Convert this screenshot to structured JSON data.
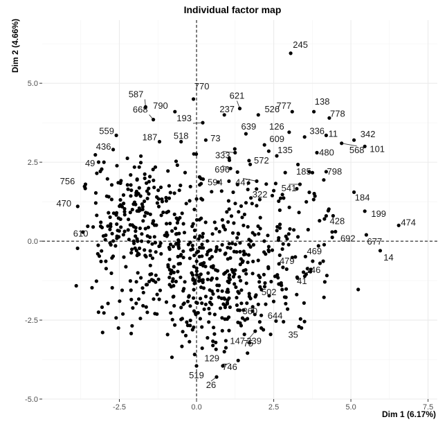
{
  "chart_data": {
    "type": "scatter",
    "title": "Individual factor map",
    "xlabel": "Dim 1 (6.17%)",
    "ylabel": "Dim 2 (4.66%)",
    "xlim": [
      -5.0,
      7.8
    ],
    "ylim": [
      -5.0,
      7.0
    ],
    "x_ticks": [
      -2.5,
      0.0,
      2.5,
      5.0,
      7.5
    ],
    "y_ticks": [
      -5.0,
      -2.5,
      0.0,
      2.5,
      5.0
    ],
    "x_tick_labels": [
      "-2.5",
      "0.0",
      "2.5",
      "5.0",
      "7.5"
    ],
    "y_tick_labels": [
      "-5.0",
      "-2.5",
      "0.0",
      "2.5",
      "5.0"
    ],
    "reference_lines": {
      "x": 0,
      "y": 0,
      "style": "dashed"
    },
    "grid": true,
    "point_color": "#000000",
    "panel_color": "#ffffff",
    "grid_color": "#ebebeb",
    "labeled_points": [
      {
        "label": "245",
        "x": 3.05,
        "y": 5.95
      },
      {
        "label": "770",
        "x": -0.1,
        "y": 4.5
      },
      {
        "label": "621",
        "x": 1.4,
        "y": 4.2
      },
      {
        "label": "790",
        "x": -0.7,
        "y": 4.1
      },
      {
        "label": "237",
        "x": 0.9,
        "y": 4.0
      },
      {
        "label": "526",
        "x": 2.0,
        "y": 4.0
      },
      {
        "label": "777",
        "x": 3.1,
        "y": 4.1
      },
      {
        "label": "138",
        "x": 3.8,
        "y": 4.1
      },
      {
        "label": "778",
        "x": 4.3,
        "y": 3.9
      },
      {
        "label": "587",
        "x": -1.65,
        "y": 4.25
      },
      {
        "label": "668",
        "x": -1.4,
        "y": 3.85
      },
      {
        "label": "193",
        "x": 0.2,
        "y": 3.75
      },
      {
        "label": "126",
        "x": 3.0,
        "y": 3.45
      },
      {
        "label": "559",
        "x": -2.6,
        "y": 3.35
      },
      {
        "label": "639",
        "x": 1.6,
        "y": 3.4
      },
      {
        "label": "336",
        "x": 3.5,
        "y": 3.3
      },
      {
        "label": "11",
        "x": 4.2,
        "y": 3.35
      },
      {
        "label": "342",
        "x": 5.1,
        "y": 3.2
      },
      {
        "label": "187",
        "x": -1.2,
        "y": 3.15
      },
      {
        "label": "518",
        "x": -0.5,
        "y": 3.15
      },
      {
        "label": "73",
        "x": 0.3,
        "y": 3.2
      },
      {
        "label": "609",
        "x": 2.2,
        "y": 3.05
      },
      {
        "label": "436",
        "x": -2.7,
        "y": 2.9
      },
      {
        "label": "333",
        "x": 1.25,
        "y": 2.8
      },
      {
        "label": "480",
        "x": 3.9,
        "y": 2.8
      },
      {
        "label": "101",
        "x": 5.45,
        "y": 3.0
      },
      {
        "label": "568",
        "x": 4.7,
        "y": 3.1
      },
      {
        "label": "135",
        "x": 2.6,
        "y": 2.7
      },
      {
        "label": "572",
        "x": 1.7,
        "y": 2.55
      },
      {
        "label": "49",
        "x": -3.0,
        "y": 2.5
      },
      {
        "label": "696",
        "x": 1.1,
        "y": 2.3
      },
      {
        "label": "185",
        "x": 3.65,
        "y": 2.2
      },
      {
        "label": "798",
        "x": 4.2,
        "y": 2.2
      },
      {
        "label": "594",
        "x": 1.05,
        "y": 1.9
      },
      {
        "label": "447",
        "x": 1.95,
        "y": 1.9
      },
      {
        "label": "756",
        "x": -3.6,
        "y": 1.8
      },
      {
        "label": "541",
        "x": 3.35,
        "y": 1.8
      },
      {
        "label": "322",
        "x": 2.5,
        "y": 1.6
      },
      {
        "label": "184",
        "x": 5.1,
        "y": 1.55
      },
      {
        "label": "470",
        "x": -3.85,
        "y": 1.1
      },
      {
        "label": "199",
        "x": 5.45,
        "y": 0.95
      },
      {
        "label": "428",
        "x": 4.2,
        "y": 0.8
      },
      {
        "label": "474",
        "x": 6.55,
        "y": 0.5
      },
      {
        "label": "610",
        "x": -3.35,
        "y": 0.45
      },
      {
        "label": "692",
        "x": 4.5,
        "y": 0.3
      },
      {
        "label": "677",
        "x": 5.5,
        "y": 0.2
      },
      {
        "label": "14",
        "x": 5.95,
        "y": -0.3
      },
      {
        "label": "469",
        "x": 3.95,
        "y": -0.15
      },
      {
        "label": "479",
        "x": 3.2,
        "y": -0.5
      },
      {
        "label": "146",
        "x": 4.0,
        "y": -0.7
      },
      {
        "label": "41",
        "x": 3.55,
        "y": -1.05
      },
      {
        "label": "502",
        "x": 2.75,
        "y": -1.4
      },
      {
        "label": "360",
        "x": 2.0,
        "y": -2.0
      },
      {
        "label": "644",
        "x": 2.95,
        "y": -2.15
      },
      {
        "label": "35",
        "x": 3.4,
        "y": -2.75
      },
      {
        "label": "147",
        "x": 1.55,
        "y": -2.95
      },
      {
        "label": "339",
        "x": 2.4,
        "y": -2.95
      },
      {
        "label": "75",
        "x": 1.9,
        "y": -2.85
      },
      {
        "label": "129",
        "x": 0.9,
        "y": -3.5
      },
      {
        "label": "746",
        "x": 0.85,
        "y": -3.95
      },
      {
        "label": "519",
        "x": 0.0,
        "y": -3.95
      },
      {
        "label": "26",
        "x": 0.65,
        "y": -4.3
      }
    ],
    "point_cloud_seed": 20240611,
    "point_cloud_count": 720
  }
}
